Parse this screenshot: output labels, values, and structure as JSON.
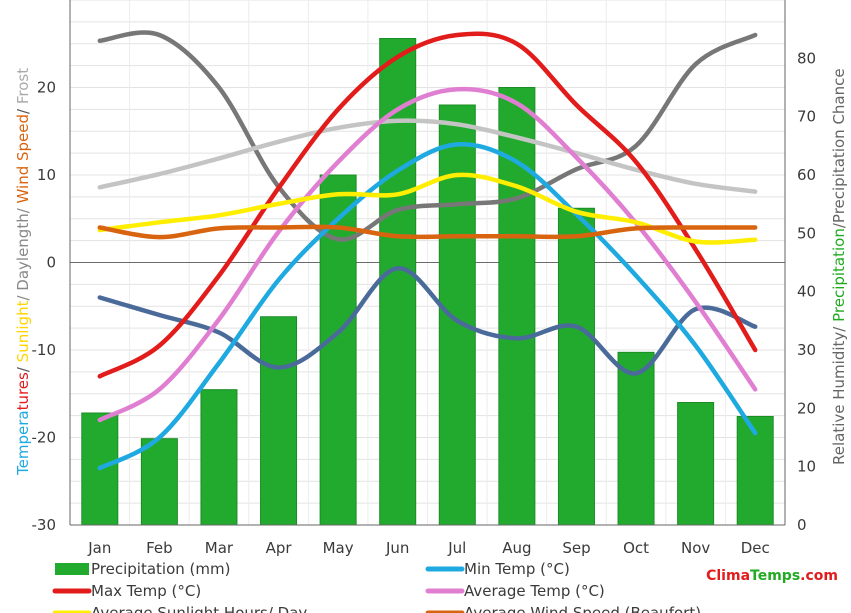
{
  "chart_data": {
    "type": "bar+line",
    "categories": [
      "Jan",
      "Feb",
      "Mar",
      "Apr",
      "May",
      "Jun",
      "Jul",
      "Aug",
      "Sep",
      "Oct",
      "Nov",
      "Dec"
    ],
    "left_axis": {
      "ylim": [
        -30,
        30
      ],
      "ticks": [
        -30,
        -20,
        -10,
        0,
        10,
        20
      ]
    },
    "right_axis": {
      "ylim": [
        0,
        90
      ],
      "ticks": [
        0,
        10,
        20,
        30,
        40,
        50,
        60,
        70,
        80
      ]
    },
    "left_label_parts": [
      {
        "text": "Tempera",
        "color": "#1fa9e1"
      },
      {
        "text": "tures",
        "color": "#e21b1b"
      },
      {
        "text": "/ ",
        "color": "#555555"
      },
      {
        "text": "Sunlight",
        "color": "#ffd400"
      },
      {
        "text": "/ Daylength/ ",
        "color": "#888888"
      },
      {
        "text": "Wind Speed",
        "color": "#d9640f"
      },
      {
        "text": "/ ",
        "color": "#555555"
      },
      {
        "text": "Frost",
        "color": "#aaaaaa"
      }
    ],
    "right_label_parts": [
      {
        "text": "Relative Humidity/ ",
        "color": "#666666"
      },
      {
        "text": "Precipitation",
        "color": "#22aa22"
      },
      {
        "text": "/Precipitation Chance",
        "color": "#666666"
      }
    ],
    "series": [
      {
        "name": "Precipitation (mm)",
        "kind": "bar",
        "axis": "right",
        "color": "#22aa2e",
        "values": [
          19.2,
          14.8,
          23.2,
          35.7,
          60.0,
          83.4,
          72.0,
          75.0,
          54.3,
          29.6,
          21.0,
          18.6
        ]
      },
      {
        "name": "Relative Humidity",
        "kind": "line",
        "axis": "right",
        "color": "#777777",
        "show_in_legend": false,
        "values": [
          83,
          84,
          75,
          58,
          49,
          54,
          55,
          56,
          61,
          65,
          79,
          84
        ]
      },
      {
        "name": "Daylength",
        "kind": "line",
        "axis": "left",
        "color": "#c4c4c4",
        "show_in_legend": false,
        "values": [
          8.6,
          10.1,
          11.9,
          13.8,
          15.4,
          16.2,
          15.8,
          14.3,
          12.5,
          10.6,
          9.0,
          8.1
        ]
      },
      {
        "name": "Precipitation Chance",
        "kind": "line",
        "axis": "right",
        "color": "#4a6b9a",
        "show_in_legend": false,
        "values": [
          39,
          36,
          33,
          27,
          33,
          44,
          35,
          32,
          34,
          26,
          37,
          34
        ]
      },
      {
        "name": "Min Temp (°C)",
        "kind": "line",
        "axis": "left",
        "color": "#1fa9e1",
        "values": [
          -23.5,
          -20.0,
          -11.5,
          -2.0,
          5.0,
          10.5,
          13.5,
          11.5,
          5.5,
          -1.5,
          -9.5,
          -19.5
        ]
      },
      {
        "name": "Max Temp (°C)",
        "kind": "line",
        "axis": "left",
        "color": "#e21b1b",
        "values": [
          -13.0,
          -9.5,
          -1.5,
          8.5,
          17.5,
          23.5,
          26.0,
          25.0,
          18.0,
          11.5,
          1.5,
          -10.0
        ]
      },
      {
        "name": "Average Temp (°C)",
        "kind": "line",
        "axis": "left",
        "color": "#e07fd2",
        "values": [
          -18.0,
          -14.5,
          -6.5,
          3.5,
          11.5,
          17.5,
          19.8,
          18.2,
          12.0,
          4.5,
          -4.5,
          -14.5
        ]
      },
      {
        "name": "Average Sunlight Hours/ Day",
        "kind": "line",
        "axis": "left",
        "color": "#ffee00",
        "values": [
          3.7,
          4.6,
          5.4,
          6.7,
          7.8,
          7.8,
          10.0,
          8.7,
          5.8,
          4.6,
          2.4,
          2.6
        ]
      },
      {
        "name": "Average Wind Speed (Beaufort)",
        "kind": "line",
        "axis": "left",
        "color": "#d9640f",
        "values": [
          4.0,
          2.9,
          3.9,
          4.0,
          4.0,
          3.0,
          3.0,
          3.0,
          3.0,
          3.9,
          4.0,
          4.0
        ]
      }
    ],
    "brand": {
      "text1": "Clima",
      "text2": "Temps",
      "text3": ".com",
      "color1": "#e21b1b",
      "color2": "#22aa22"
    }
  }
}
